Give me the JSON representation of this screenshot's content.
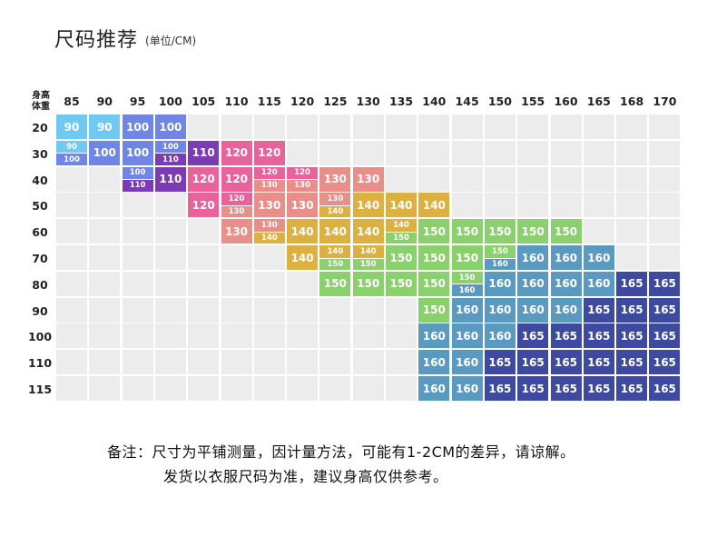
{
  "title": "尺码推荐",
  "unit": "(单位/CM)",
  "corner_label": [
    "身高",
    "体重"
  ],
  "colors": {
    "90": "#6fc9f2",
    "100": "#6f86e6",
    "110": "#7a3bb5",
    "120": "#e9639b",
    "130": "#e98f8a",
    "140": "#ddb042",
    "150": "#8ad06c",
    "160": "#5b9ac0",
    "165": "#3e4aa0",
    "empty": "#ececec"
  },
  "notes": [
    "备注：尺寸为平铺测量，因计量方法，可能有1-2CM的差异，请谅解。",
    "发货以衣服尺码为准，建议身高仅供参考。"
  ],
  "chart_data": {
    "type": "table",
    "title": "尺码推荐",
    "xlabel": "身高",
    "ylabel": "体重",
    "heights": [
      "85",
      "90",
      "95",
      "100",
      "105",
      "110",
      "115",
      "120",
      "125",
      "130",
      "135",
      "140",
      "145",
      "150",
      "155",
      "160",
      "165",
      "168",
      "170"
    ],
    "weights": [
      "20",
      "30",
      "40",
      "50",
      "60",
      "70",
      "80",
      "90",
      "100",
      "110",
      "115"
    ],
    "rows": [
      [
        "90",
        "90",
        "100",
        "100",
        "",
        "",
        "",
        "",
        "",
        "",
        "",
        "",
        "",
        "",
        "",
        "",
        "",
        "",
        ""
      ],
      [
        "90/100",
        "100",
        "100",
        "100/110",
        "110",
        "120",
        "120",
        "",
        "",
        "",
        "",
        "",
        "",
        "",
        "",
        "",
        "",
        "",
        ""
      ],
      [
        "",
        "",
        "100/110",
        "110",
        "120",
        "120",
        "120/130",
        "120/130",
        "130",
        "130",
        "",
        "",
        "",
        "",
        "",
        "",
        "",
        "",
        ""
      ],
      [
        "",
        "",
        "",
        "",
        "120",
        "120/130",
        "130",
        "130",
        "130/140",
        "140",
        "140",
        "140",
        "",
        "",
        "",
        "",
        "",
        "",
        ""
      ],
      [
        "",
        "",
        "",
        "",
        "",
        "130",
        "130/140",
        "140",
        "140",
        "140",
        "140/150",
        "150",
        "150",
        "150",
        "150",
        "150",
        "",
        "",
        ""
      ],
      [
        "",
        "",
        "",
        "",
        "",
        "",
        "",
        "140",
        "140/150",
        "140/150",
        "150",
        "150",
        "150",
        "150/160",
        "160",
        "160",
        "160",
        "",
        ""
      ],
      [
        "",
        "",
        "",
        "",
        "",
        "",
        "",
        "",
        "150",
        "150",
        "150",
        "150",
        "150/160",
        "160",
        "160",
        "160",
        "160",
        "165",
        "165"
      ],
      [
        "",
        "",
        "",
        "",
        "",
        "",
        "",
        "",
        "",
        "",
        "",
        "150",
        "160",
        "160",
        "160",
        "160",
        "165",
        "165",
        "165"
      ],
      [
        "",
        "",
        "",
        "",
        "",
        "",
        "",
        "",
        "",
        "",
        "",
        "160",
        "160",
        "160",
        "165",
        "165",
        "165",
        "165",
        "165"
      ],
      [
        "",
        "",
        "",
        "",
        "",
        "",
        "",
        "",
        "",
        "",
        "",
        "160",
        "160",
        "165",
        "165",
        "165",
        "165",
        "165",
        "165"
      ],
      [
        "",
        "",
        "",
        "",
        "",
        "",
        "",
        "",
        "",
        "",
        "",
        "160",
        "160",
        "165",
        "165",
        "165",
        "165",
        "165",
        "165"
      ]
    ]
  }
}
